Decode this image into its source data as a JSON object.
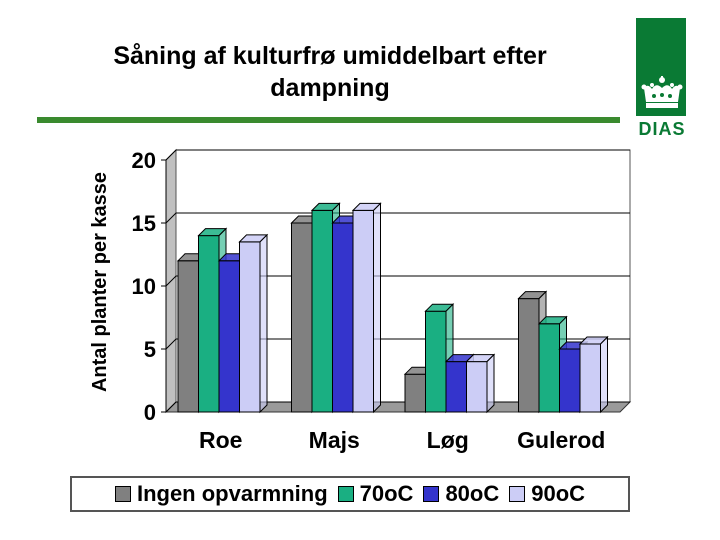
{
  "title_line1": "Såning af kulturfrø umiddelbart efter",
  "title_line2": "dampning",
  "logo_text": "DIAS",
  "colors": {
    "accent_rule": "#3a8a2e",
    "logo_green": "#0a7a34"
  },
  "chart_data": {
    "type": "bar",
    "title": "",
    "ylabel": "Antal planter per kasse",
    "xlabel": "",
    "categories": [
      "Roe",
      "Majs",
      "Løg",
      "Gulerod"
    ],
    "ylim": [
      0,
      20
    ],
    "yticks": [
      0,
      5,
      10,
      15,
      20
    ],
    "ytick_labels": [
      "0",
      "5",
      "10",
      "15",
      "20"
    ],
    "grid": true,
    "style": "3d-bars",
    "legend_position": "bottom",
    "series": [
      {
        "name": "Ingen opvarmning",
        "color": "#808080",
        "values": [
          12,
          15,
          3,
          9
        ]
      },
      {
        "name": "70oC",
        "color": "#1aaf82",
        "values": [
          14,
          16,
          8,
          7
        ]
      },
      {
        "name": "80oC",
        "color": "#3434cc",
        "values": [
          12,
          15,
          4,
          5
        ]
      },
      {
        "name": "90oC",
        "color": "#cccdf6",
        "values": [
          13.5,
          16,
          4,
          5.4
        ]
      }
    ]
  }
}
